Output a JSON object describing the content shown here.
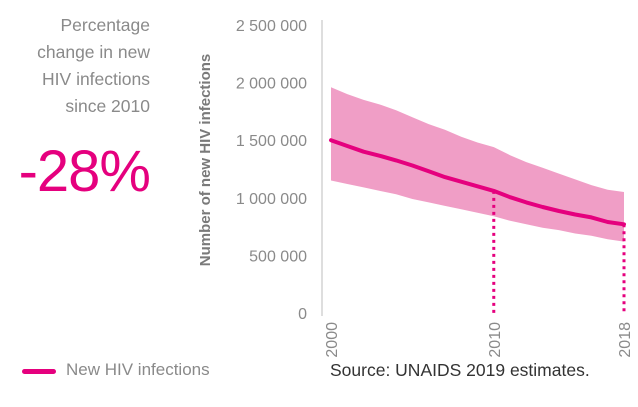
{
  "side_note": {
    "lines": [
      "Percentage",
      "change in new",
      "HIV infections",
      "since 2010"
    ],
    "value": "-28%"
  },
  "colors": {
    "accent": "#e5007e",
    "band": "#f09ec6",
    "axis_text": "#8a8a8a",
    "axis_title": "#7a7a7a"
  },
  "chart_data": {
    "type": "area",
    "ylabel": "Number of new HIV infections",
    "ylim": [
      0,
      2500000
    ],
    "yticks": [
      0,
      500000,
      1000000,
      1500000,
      2000000,
      2500000
    ],
    "ytick_labels": [
      "0",
      "500 000",
      "1 000 000",
      "1 500 000",
      "2 000 000",
      "2 500 000"
    ],
    "xlim": [
      2000,
      2018
    ],
    "xticks": [
      2000,
      2010,
      2018
    ],
    "xtick_labels": [
      "2000",
      "2010",
      "2018"
    ],
    "highlight_years": [
      2010,
      2018
    ],
    "series": [
      {
        "name": "New HIV infections",
        "x": [
          2000,
          2001,
          2002,
          2003,
          2004,
          2005,
          2006,
          2007,
          2008,
          2009,
          2010,
          2011,
          2012,
          2013,
          2014,
          2015,
          2016,
          2017,
          2018
        ],
        "y": [
          1500000,
          1450000,
          1400000,
          1365000,
          1325000,
          1280000,
          1230000,
          1180000,
          1140000,
          1100000,
          1060000,
          1005000,
          960000,
          920000,
          885000,
          855000,
          830000,
          790000,
          770000
        ],
        "lower": [
          1150000,
          1120000,
          1090000,
          1060000,
          1030000,
          990000,
          960000,
          930000,
          900000,
          870000,
          840000,
          800000,
          770000,
          740000,
          720000,
          690000,
          670000,
          640000,
          620000
        ],
        "upper": [
          1960000,
          1900000,
          1850000,
          1810000,
          1760000,
          1700000,
          1640000,
          1590000,
          1530000,
          1480000,
          1440000,
          1370000,
          1310000,
          1260000,
          1210000,
          1160000,
          1110000,
          1070000,
          1050000
        ]
      }
    ],
    "legend": {
      "position": "bottom-left",
      "entries": [
        "New HIV infections"
      ]
    },
    "grid": false,
    "source": "Source: UNAIDS 2019 estimates."
  }
}
